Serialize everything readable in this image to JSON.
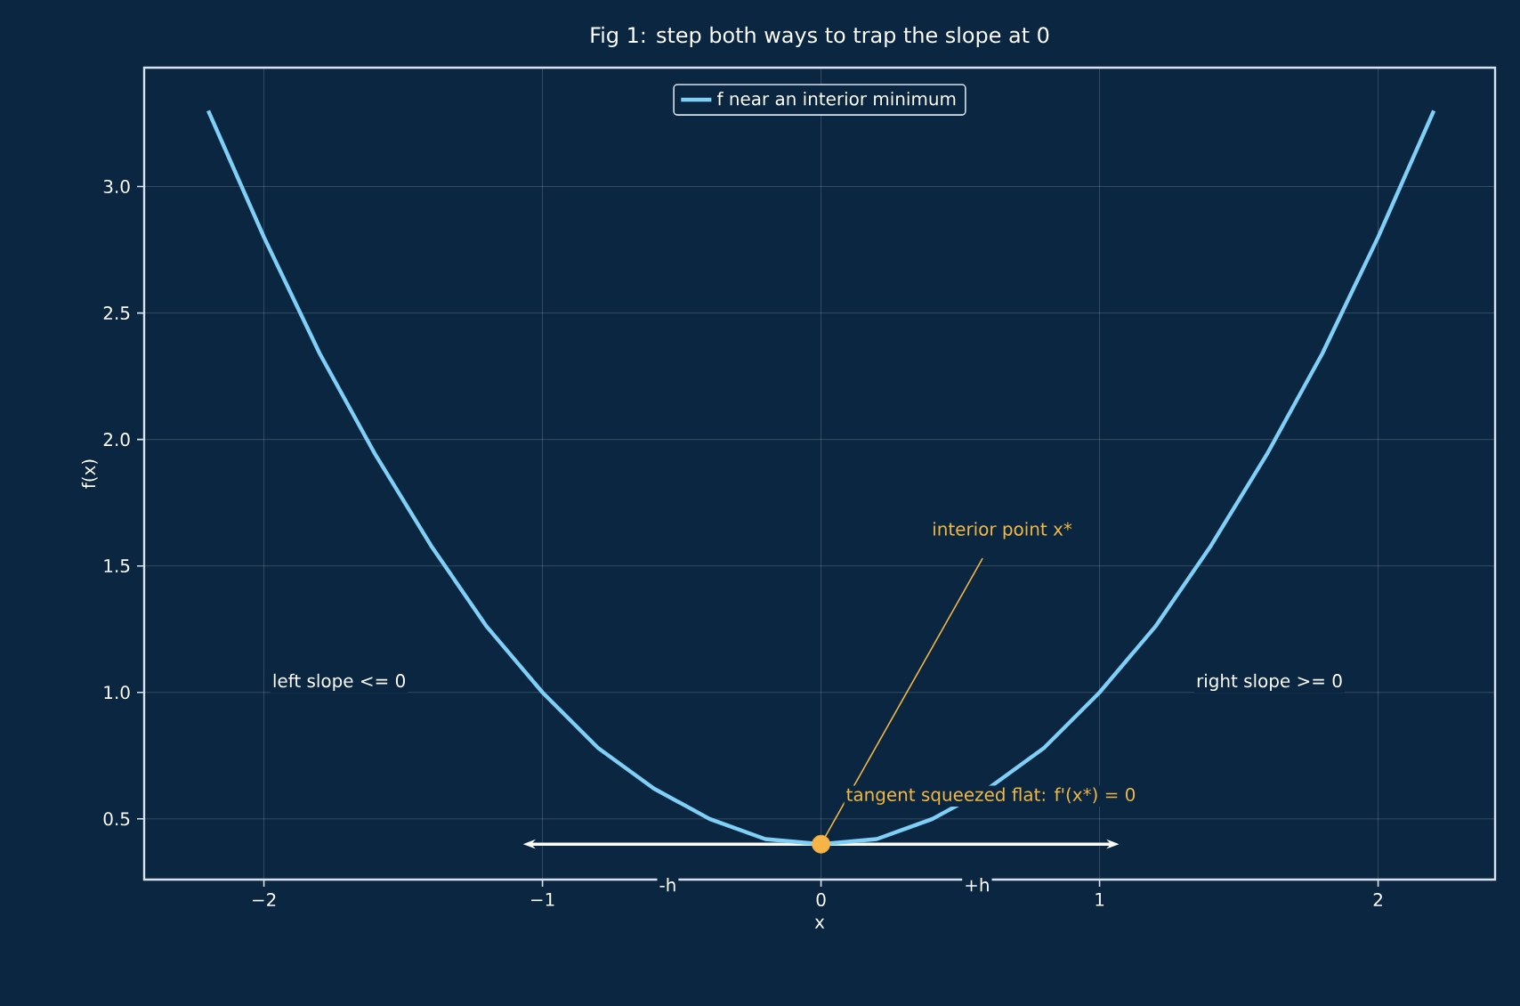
{
  "chart_data": {
    "type": "line",
    "title": "Fig 1: step both ways to trap the slope at 0",
    "xlabel": "x",
    "ylabel": "f(x)",
    "xlim": [
      -2.43,
      2.42
    ],
    "ylim": [
      0.26,
      3.47
    ],
    "xticks": [
      {
        "value": -2,
        "label": "−2"
      },
      {
        "value": -1,
        "label": "−1"
      },
      0,
      1,
      2
    ],
    "yticks": [
      {
        "value": 0.5,
        "label": "0.5"
      },
      {
        "value": 1.0,
        "label": "1.0"
      },
      {
        "value": 1.5,
        "label": "1.5"
      },
      {
        "value": 2.0,
        "label": "2.0"
      },
      {
        "value": 2.5,
        "label": "2.5"
      },
      {
        "value": 3.0,
        "label": "3.0"
      }
    ],
    "grid": true,
    "legend": "top",
    "line_style": "solid",
    "series": [
      {
        "name": "f near an interior minimum",
        "marker": "none",
        "color": "#7fcff7",
        "x": [
          -2.2,
          -2.0,
          -1.8,
          -1.6,
          -1.4,
          -1.2,
          -1.0,
          -0.8,
          -0.6,
          -0.4,
          -0.2,
          0,
          0.2,
          0.4,
          0.6,
          0.8,
          1.0,
          1.2,
          1.4,
          1.6,
          1.8,
          2.0,
          2.2
        ],
        "values": [
          3.3,
          2.8,
          2.34,
          1.94,
          1.58,
          1.26,
          1.0,
          0.78,
          0.62,
          0.5,
          0.42,
          0.4,
          0.42,
          0.5,
          0.62,
          0.78,
          1.0,
          1.26,
          1.58,
          1.94,
          2.34,
          2.8,
          3.3
        ]
      },
      {
        "type": "scatter",
        "color": "#f7b446",
        "marker": "circle",
        "x": [
          0
        ],
        "values": [
          0.4
        ]
      }
    ],
    "annotations": [
      {
        "text": "interior point x*",
        "x": 0,
        "y": 0.4
      },
      "tangent squeezed flat: f'(x*) = 0",
      "left slope <= 0",
      "right slope >= 0",
      "-h",
      "+h"
    ]
  }
}
